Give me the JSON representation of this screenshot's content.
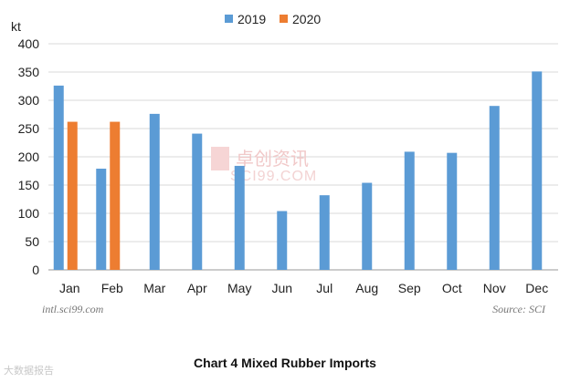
{
  "chart_data": {
    "type": "bar",
    "title": "",
    "caption": "Chart 4 Mixed Rubber Imports",
    "unit_label": "kt",
    "categories": [
      "Jan",
      "Feb",
      "Mar",
      "Apr",
      "May",
      "Jun",
      "Jul",
      "Aug",
      "Sep",
      "Oct",
      "Nov",
      "Dec"
    ],
    "series": [
      {
        "name": "2019",
        "color": "#5b9bd5",
        "values": [
          326,
          179,
          276,
          241,
          184,
          104,
          132,
          154,
          209,
          207,
          290,
          351
        ]
      },
      {
        "name": "2020",
        "color": "#ed7d31",
        "values": [
          262,
          262,
          null,
          null,
          null,
          null,
          null,
          null,
          null,
          null,
          null,
          null
        ]
      }
    ],
    "ylim": [
      0,
      400
    ],
    "yticks": [
      0,
      50,
      100,
      150,
      200,
      250,
      300,
      350,
      400
    ],
    "grid": true,
    "legend_position": "top-center",
    "watermark": {
      "text": "卓创资讯",
      "sub": "SCI99.COM"
    },
    "footer_left": "intl.sci99.com",
    "footer_right": "Source: SCI"
  },
  "corner_watermark": "大数据报告"
}
